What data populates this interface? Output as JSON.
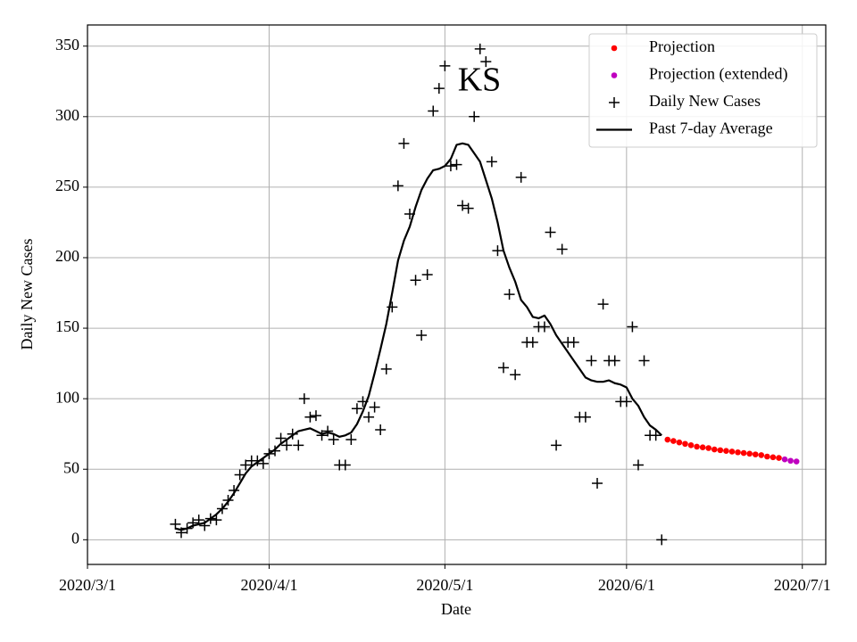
{
  "chart_data": {
    "type": "scatter",
    "annotation": "KS",
    "xlabel": "Date",
    "ylabel": "Daily New Cases",
    "xlim": [
      "2020/3/1",
      "2020/7/5"
    ],
    "xticks": [
      "2020/3/1",
      "2020/4/1",
      "2020/5/1",
      "2020/6/1",
      "2020/7/1"
    ],
    "ylim": [
      -17.5,
      365
    ],
    "yticks": [
      0,
      50,
      100,
      150,
      200,
      250,
      300,
      350
    ],
    "grid": true,
    "legend": "upper right",
    "series": [
      {
        "name": "Projection",
        "type": "scatter",
        "marker": "o",
        "color": "#ff0000",
        "x": [
          "2020/6/8",
          "2020/6/9",
          "2020/6/10",
          "2020/6/11",
          "2020/6/12",
          "2020/6/13",
          "2020/6/14",
          "2020/6/15",
          "2020/6/16",
          "2020/6/17",
          "2020/6/18",
          "2020/6/19",
          "2020/6/20",
          "2020/6/21",
          "2020/6/22",
          "2020/6/23",
          "2020/6/24",
          "2020/6/25",
          "2020/6/26",
          "2020/6/27"
        ],
        "values": [
          71,
          70,
          69,
          68,
          67,
          66,
          65.5,
          65,
          64,
          63.5,
          63,
          62.5,
          62,
          61.5,
          61,
          60.5,
          60,
          59,
          58.5,
          58
        ]
      },
      {
        "name": "Projection (extended)",
        "type": "scatter",
        "marker": "o",
        "color": "#bf00bf",
        "x": [
          "2020/6/28",
          "2020/6/29",
          "2020/6/30"
        ],
        "values": [
          57,
          56,
          55.5
        ]
      },
      {
        "name": "Daily New Cases",
        "type": "scatter",
        "marker": "+",
        "color": "#000000",
        "x": [
          "2020/3/16",
          "2020/3/17",
          "2020/3/18",
          "2020/3/19",
          "2020/3/20",
          "2020/3/21",
          "2020/3/22",
          "2020/3/23",
          "2020/3/24",
          "2020/3/25",
          "2020/3/26",
          "2020/3/27",
          "2020/3/28",
          "2020/3/29",
          "2020/3/30",
          "2020/3/31",
          "2020/4/1",
          "2020/4/2",
          "2020/4/3",
          "2020/4/4",
          "2020/4/5",
          "2020/4/6",
          "2020/4/7",
          "2020/4/8",
          "2020/4/9",
          "2020/4/10",
          "2020/4/11",
          "2020/4/12",
          "2020/4/13",
          "2020/4/14",
          "2020/4/15",
          "2020/4/16",
          "2020/4/17",
          "2020/4/18",
          "2020/4/19",
          "2020/4/20",
          "2020/4/21",
          "2020/4/22",
          "2020/4/23",
          "2020/4/24",
          "2020/4/25",
          "2020/4/26",
          "2020/4/27",
          "2020/4/28",
          "2020/4/29",
          "2020/4/30",
          "2020/5/1",
          "2020/5/2",
          "2020/5/3",
          "2020/5/4",
          "2020/5/5",
          "2020/5/6",
          "2020/5/7",
          "2020/5/8",
          "2020/5/9",
          "2020/5/10",
          "2020/5/11",
          "2020/5/12",
          "2020/5/13",
          "2020/5/14",
          "2020/5/15",
          "2020/5/16",
          "2020/5/17",
          "2020/5/18",
          "2020/5/19",
          "2020/5/20",
          "2020/5/21",
          "2020/5/22",
          "2020/5/23",
          "2020/5/24",
          "2020/5/25",
          "2020/5/26",
          "2020/5/27",
          "2020/5/28",
          "2020/5/29",
          "2020/5/30",
          "2020/5/31",
          "2020/6/1",
          "2020/6/2",
          "2020/6/3",
          "2020/6/4",
          "2020/6/5",
          "2020/6/6",
          "2020/6/7"
        ],
        "values": [
          11,
          5,
          8,
          12,
          14,
          10,
          15,
          14,
          22,
          28,
          35,
          46,
          53,
          56,
          56,
          54,
          61,
          63,
          72,
          67,
          75,
          67,
          100,
          87,
          88,
          74,
          77,
          71,
          53,
          53,
          71,
          93,
          98,
          87,
          94,
          78,
          121,
          165,
          251,
          281,
          231,
          184,
          145,
          188,
          304,
          320,
          336,
          265,
          266,
          237,
          235,
          300,
          348,
          339,
          268,
          205,
          122,
          174,
          117,
          257,
          140,
          140,
          151,
          151,
          218,
          67,
          206,
          140,
          140,
          87,
          87,
          127,
          40,
          167,
          127,
          127,
          98,
          98,
          151,
          53,
          127,
          74,
          74,
          0
        ]
      },
      {
        "name": "Past 7-day Average",
        "type": "line",
        "color": "#000000",
        "x": [
          "2020/3/16",
          "2020/3/17",
          "2020/3/18",
          "2020/3/19",
          "2020/3/20",
          "2020/3/21",
          "2020/3/22",
          "2020/3/23",
          "2020/3/24",
          "2020/3/25",
          "2020/3/26",
          "2020/3/27",
          "2020/3/28",
          "2020/3/29",
          "2020/3/30",
          "2020/3/31",
          "2020/4/1",
          "2020/4/2",
          "2020/4/3",
          "2020/4/4",
          "2020/4/5",
          "2020/4/6",
          "2020/4/7",
          "2020/4/8",
          "2020/4/9",
          "2020/4/10",
          "2020/4/11",
          "2020/4/12",
          "2020/4/13",
          "2020/4/14",
          "2020/4/15",
          "2020/4/16",
          "2020/4/17",
          "2020/4/18",
          "2020/4/19",
          "2020/4/20",
          "2020/4/21",
          "2020/4/22",
          "2020/4/23",
          "2020/4/24",
          "2020/4/25",
          "2020/4/26",
          "2020/4/27",
          "2020/4/28",
          "2020/4/29",
          "2020/4/30",
          "2020/5/1",
          "2020/5/2",
          "2020/5/3",
          "2020/5/4",
          "2020/5/5",
          "2020/5/6",
          "2020/5/7",
          "2020/5/8",
          "2020/5/9",
          "2020/5/10",
          "2020/5/11",
          "2020/5/12",
          "2020/5/13",
          "2020/5/14",
          "2020/5/15",
          "2020/5/16",
          "2020/5/17",
          "2020/5/18",
          "2020/5/19",
          "2020/5/20",
          "2020/5/21",
          "2020/5/22",
          "2020/5/23",
          "2020/5/24",
          "2020/5/25",
          "2020/5/26",
          "2020/5/27",
          "2020/5/28",
          "2020/5/29",
          "2020/5/30",
          "2020/5/31",
          "2020/6/1",
          "2020/6/2",
          "2020/6/3",
          "2020/6/4",
          "2020/6/5",
          "2020/6/6",
          "2020/6/7"
        ],
        "values": [
          8,
          7,
          8,
          10,
          11,
          12,
          15,
          18,
          22,
          27,
          33,
          40,
          47,
          52,
          55,
          58,
          61,
          64,
          68,
          71,
          74,
          77,
          78,
          79,
          77,
          75,
          76,
          75,
          73,
          74,
          76,
          82,
          91,
          102,
          118,
          135,
          153,
          175,
          198,
          212,
          222,
          236,
          248,
          256,
          262,
          263,
          265,
          270,
          280,
          281,
          280,
          274,
          268,
          255,
          242,
          225,
          205,
          193,
          183,
          170,
          165,
          158,
          157,
          159,
          153,
          145,
          139,
          133,
          127,
          121,
          115,
          113,
          112,
          112,
          113,
          111,
          110,
          108,
          100,
          95,
          87,
          81,
          78,
          74
        ]
      }
    ]
  }
}
